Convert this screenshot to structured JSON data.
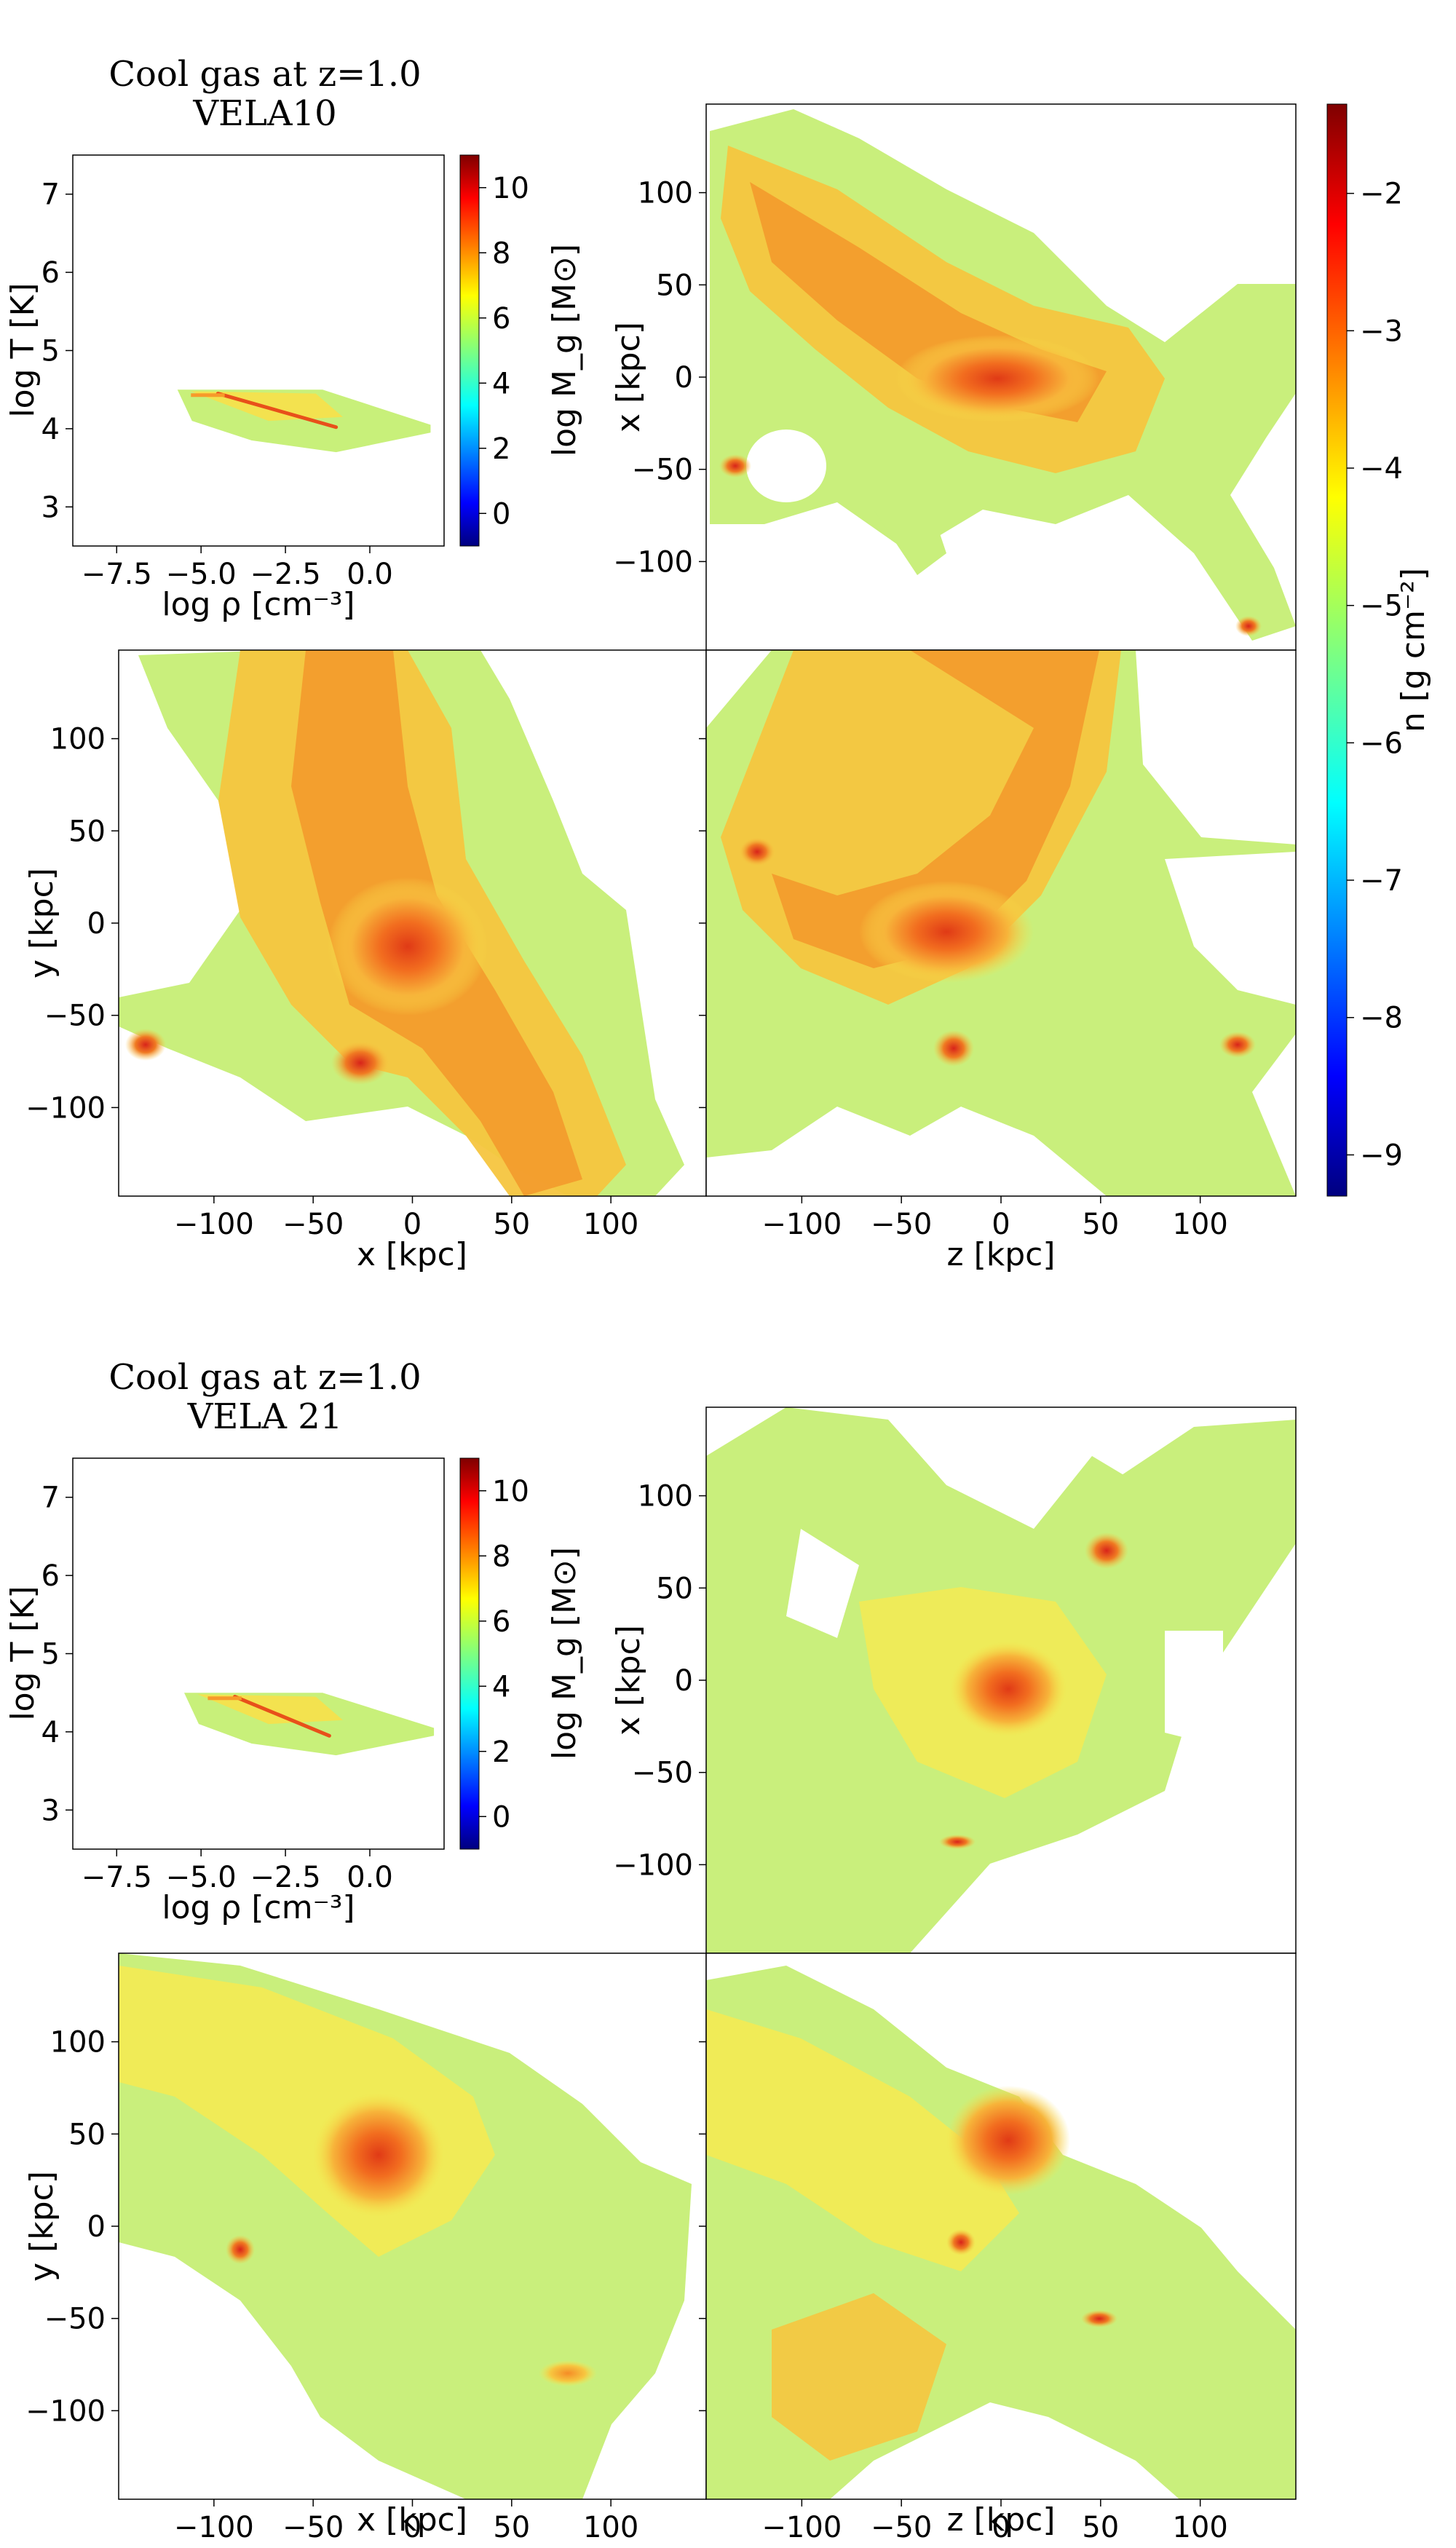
{
  "colors": {
    "jet": [
      "#00007f",
      "#0000ff",
      "#007fff",
      "#00ffff",
      "#7fff7f",
      "#ffff00",
      "#ff7f00",
      "#ff0000",
      "#7f0000"
    ],
    "map_fill": "#c8f07a",
    "map_mid": "#f7e04a",
    "map_high": "#f79a2a",
    "map_peak": "#e8501a"
  },
  "density_colorbar": {
    "label": "n [g cm$^{-2}$]",
    "label_display": "n [g cm⁻²]",
    "ticks": [
      "−2",
      "−3",
      "−4",
      "−5",
      "−6",
      "−7",
      "−8",
      "−9"
    ],
    "range": [
      -9.3,
      -1.35
    ]
  },
  "chart_data": [
    {
      "type": "heatmap",
      "galaxy": "VELA10",
      "title_line1": "Cool gas at z=1.0",
      "title_line2": "VELA10",
      "phase": {
        "xlabel": "log ρ [cm⁻³]",
        "ylabel": "log T [K]",
        "xlim": [
          -8.8,
          2.2
        ],
        "ylim": [
          2.5,
          7.5
        ],
        "xticks": [
          "−7.5",
          "−5.0",
          "−2.5",
          "0.0"
        ],
        "xtick_values": [
          -7.5,
          -5.0,
          -2.5,
          0.0
        ],
        "yticks": [
          "3",
          "4",
          "5",
          "6",
          "7"
        ],
        "ytick_values": [
          3,
          4,
          5,
          6,
          7
        ],
        "colorbar_label": "log M_g [M_⊙]",
        "colorbar_label_display": "log M_g [M⊙]",
        "colorbar_ticks": [
          "0",
          "2",
          "4",
          "6",
          "8",
          "10"
        ],
        "colorbar_tick_values": [
          0,
          2,
          4,
          6,
          8,
          10
        ],
        "colorbar_range": [
          -1,
          11
        ],
        "gas_region": {
          "logrho_min": -5.7,
          "logrho_max": 1.8,
          "logT_min": 3.7,
          "logT_max": 4.5
        },
        "ridge": {
          "logrho_start": -4.5,
          "logT_start": 4.45,
          "logrho_end": -1.0,
          "logT_end": 4.02
        }
      },
      "projections": [
        {
          "name": "x-z",
          "xlabel": "",
          "ylabel": "x [kpc]",
          "xticks": [],
          "yticks": [
            "100",
            "50",
            "0",
            "−50",
            "−100"
          ]
        },
        {
          "name": "y-x",
          "xlabel": "x [kpc]",
          "ylabel": "y [kpc]",
          "xticks": [
            "−100",
            "−50",
            "0",
            "50",
            "100"
          ],
          "yticks": [
            "100",
            "50",
            "0",
            "−50",
            "−100"
          ]
        },
        {
          "name": "y-z",
          "xlabel": "z [kpc]",
          "ylabel": "",
          "xticks": [
            "−100",
            "−50",
            "0",
            "50",
            "100"
          ],
          "yticks": []
        }
      ],
      "axis_range_kpc": [
        -148,
        148
      ]
    },
    {
      "type": "heatmap",
      "galaxy": "VELA 21",
      "title_line1": "Cool gas at z=1.0",
      "title_line2": "VELA 21",
      "phase": {
        "xlabel": "log ρ [cm⁻³]",
        "ylabel": "log T [K]",
        "xlim": [
          -8.8,
          2.2
        ],
        "ylim": [
          2.5,
          7.5
        ],
        "xticks": [
          "−7.5",
          "−5.0",
          "−2.5",
          "0.0"
        ],
        "xtick_values": [
          -7.5,
          -5.0,
          -2.5,
          0.0
        ],
        "yticks": [
          "3",
          "4",
          "5",
          "6",
          "7"
        ],
        "ytick_values": [
          3,
          4,
          5,
          6,
          7
        ],
        "colorbar_label": "log M_g [M_⊙]",
        "colorbar_label_display": "log M_g [M⊙]",
        "colorbar_ticks": [
          "0",
          "2",
          "4",
          "6",
          "8",
          "10"
        ],
        "colorbar_tick_values": [
          0,
          2,
          4,
          6,
          8,
          10
        ],
        "colorbar_range": [
          -1,
          11
        ],
        "gas_region": {
          "logrho_min": -5.5,
          "logrho_max": 1.9,
          "logT_min": 3.7,
          "logT_max": 4.5
        },
        "ridge": {
          "logrho_start": -4.0,
          "logT_start": 4.45,
          "logrho_end": -1.2,
          "logT_end": 3.95
        }
      },
      "projections": [
        {
          "name": "x-z",
          "xlabel": "",
          "ylabel": "x [kpc]",
          "xticks": [],
          "yticks": [
            "100",
            "50",
            "0",
            "−50",
            "−100"
          ]
        },
        {
          "name": "y-x",
          "xlabel": "x [kpc]",
          "ylabel": "y [kpc]",
          "xticks": [
            "−100",
            "−50",
            "0",
            "50",
            "100"
          ],
          "yticks": [
            "100",
            "50",
            "0",
            "−50",
            "−100"
          ]
        },
        {
          "name": "y-z",
          "xlabel": "z [kpc]",
          "ylabel": "",
          "xticks": [
            "−100",
            "−50",
            "0",
            "50",
            "100"
          ],
          "yticks": []
        }
      ],
      "axis_range_kpc": [
        -148,
        148
      ]
    }
  ]
}
